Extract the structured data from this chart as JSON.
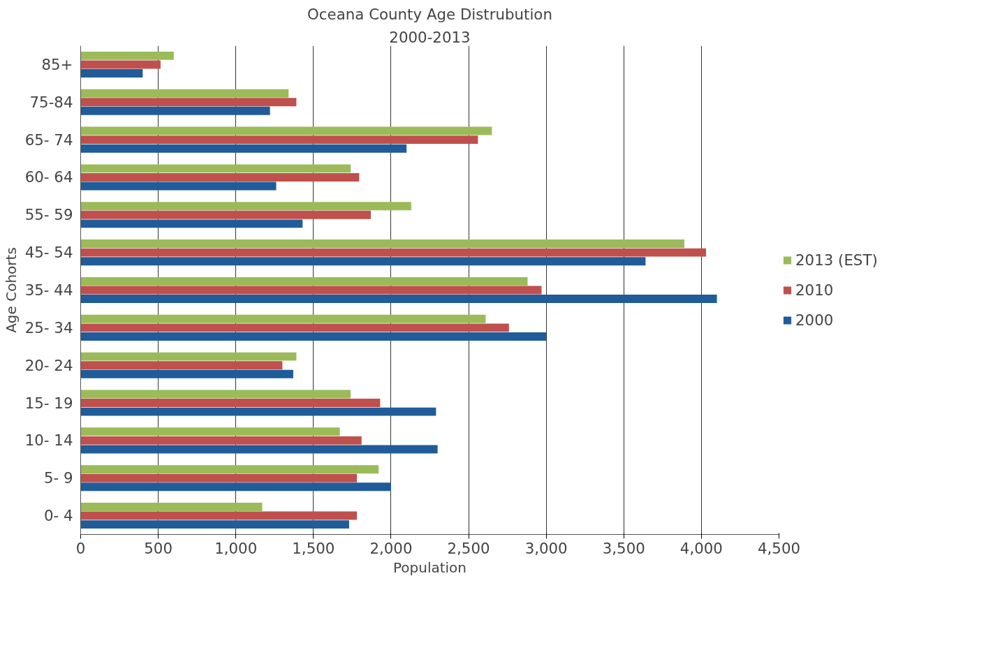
{
  "chart_data": {
    "type": "bar",
    "orientation": "horizontal",
    "title": "Oceana County Age Distrubution",
    "subtitle": "2000-2013",
    "xlabel": "Population",
    "ylabel": "Age Cohorts",
    "categories": [
      "85+",
      "75-84",
      "65- 74",
      "60- 64",
      "55- 59",
      "45- 54",
      "35- 44",
      "25- 34",
      "20- 24",
      "15- 19",
      "10- 14",
      "5- 9",
      "0- 4"
    ],
    "series": [
      {
        "name": "2013 (EST)",
        "color": "#9bbb59",
        "values": [
          600,
          1340,
          2650,
          1740,
          2130,
          3890,
          2880,
          2610,
          1390,
          1740,
          1670,
          1920,
          1170
        ]
      },
      {
        "name": "2010",
        "color": "#c0504d",
        "values": [
          515,
          1390,
          2560,
          1795,
          1870,
          4030,
          2970,
          2760,
          1300,
          1930,
          1810,
          1780,
          1780
        ]
      },
      {
        "name": "2000",
        "color": "#1f5c99",
        "values": [
          400,
          1220,
          2100,
          1260,
          1430,
          3640,
          4100,
          3000,
          1370,
          2290,
          2300,
          2000,
          1730
        ]
      }
    ],
    "xlim": [
      0,
      4500
    ],
    "xticks": [
      0,
      500,
      {
        "value": 1000,
        "label": "1,000"
      },
      {
        "value": 1500,
        "label": "1,500"
      },
      {
        "value": 2000,
        "label": "2,000"
      },
      {
        "value": 2500,
        "label": "2,500"
      },
      {
        "value": 3000,
        "label": "3,000"
      },
      {
        "value": 3500,
        "label": "3,500"
      },
      {
        "value": 4000,
        "label": "4,000"
      },
      {
        "value": 4500,
        "label": "4,500"
      }
    ],
    "grid": "x",
    "legend": "right"
  }
}
